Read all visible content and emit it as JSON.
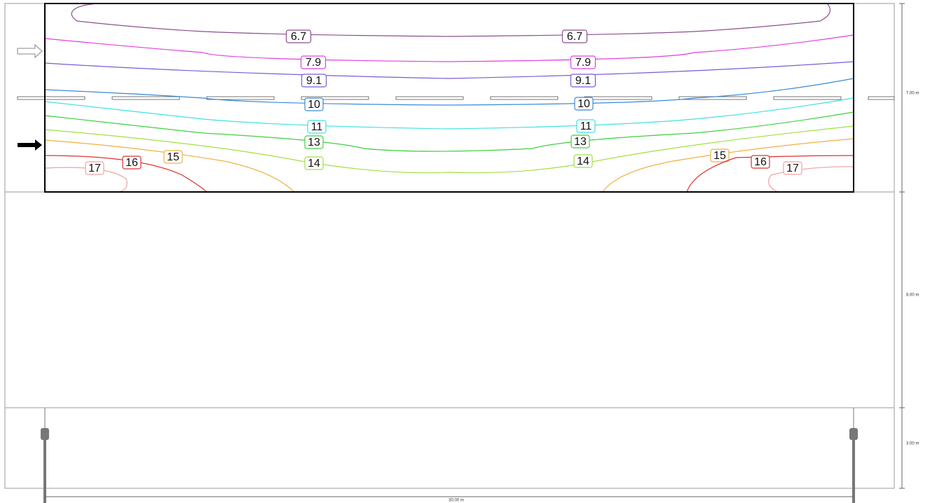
{
  "contours": [
    {
      "label": "6.7",
      "color": "#8b4f8b"
    },
    {
      "label": "7.9",
      "color": "#e040e0"
    },
    {
      "label": "9.1",
      "color": "#7a5ad8"
    },
    {
      "label": "10",
      "color": "#3a8ad8"
    },
    {
      "label": "11",
      "color": "#40e0e0"
    },
    {
      "label": "13",
      "color": "#40d040"
    },
    {
      "label": "14",
      "color": "#a0e040"
    },
    {
      "label": "15",
      "color": "#f0b040"
    },
    {
      "label": "16",
      "color": "#e03030"
    },
    {
      "label": "17",
      "color": "#f0a0a0"
    }
  ],
  "dimensions": {
    "road": "7.00 m",
    "median": "8.00 m",
    "sidewalk": "3.00 m",
    "length": "30.00 m"
  }
}
